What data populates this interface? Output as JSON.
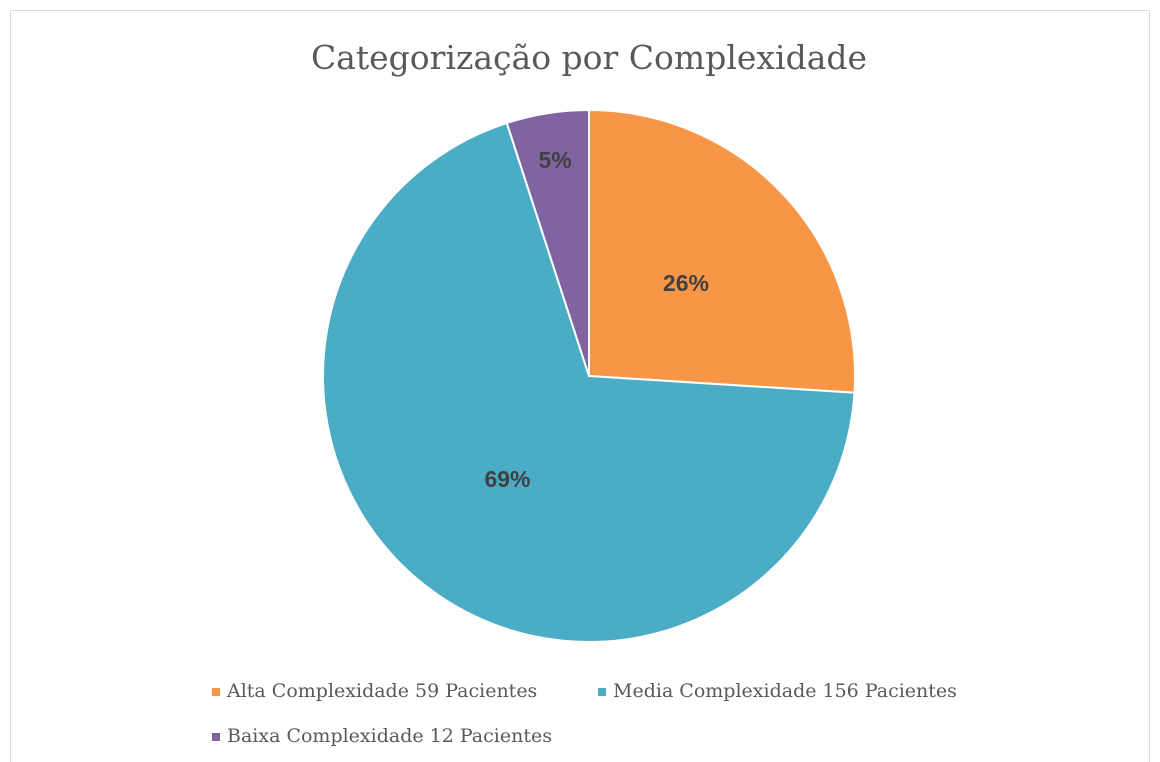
{
  "chart_data": {
    "type": "pie",
    "title": "Categorização por Complexidade",
    "categories": [
      "Alta Complexidade 59 Pacientes",
      "Media Complexidade 156 Pacientes",
      "Baixa Complexidade 12 Pacientes"
    ],
    "values": [
      26,
      69,
      5
    ],
    "value_labels": [
      "26%",
      "69%",
      "5%"
    ],
    "colors": [
      "#f79646",
      "#4bacc6",
      "#8064a2"
    ],
    "legend": "bottom"
  }
}
